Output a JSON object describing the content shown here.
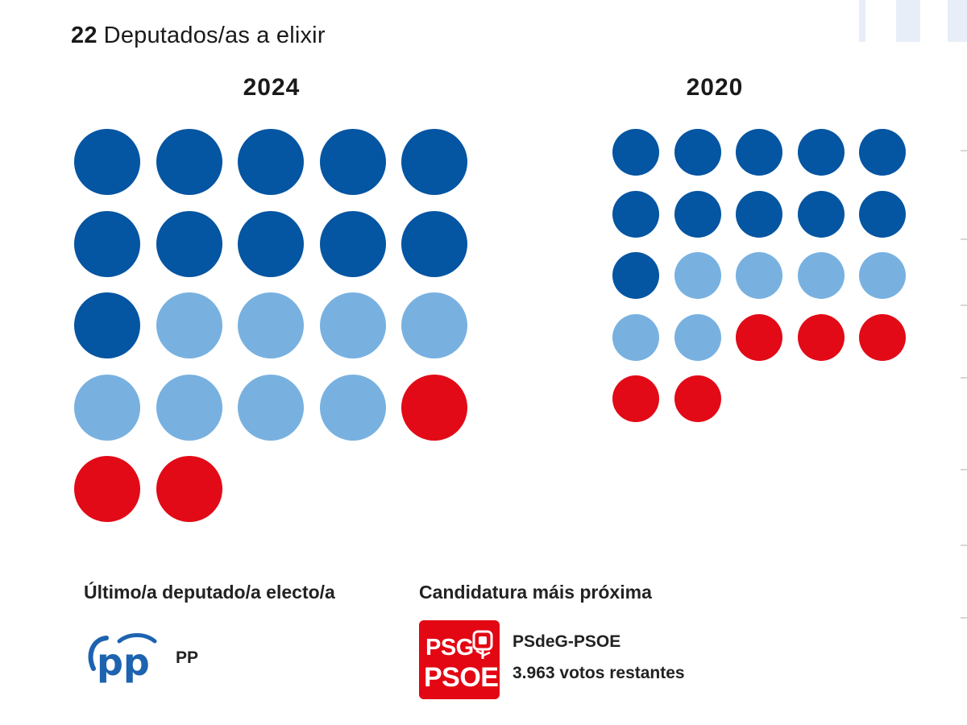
{
  "header": {
    "count": "22",
    "label": "Deputados/as a elixir"
  },
  "years": [
    {
      "year": "2024",
      "seats": [
        "pp",
        "pp",
        "pp",
        "pp",
        "pp",
        "pp",
        "pp",
        "pp",
        "pp",
        "pp",
        "pp",
        "bng",
        "bng",
        "bng",
        "bng",
        "bng",
        "bng",
        "bng",
        "bng",
        "psoe",
        "psoe",
        "psoe"
      ]
    },
    {
      "year": "2020",
      "seats": [
        "pp",
        "pp",
        "pp",
        "pp",
        "pp",
        "pp",
        "pp",
        "pp",
        "pp",
        "pp",
        "pp",
        "bng",
        "bng",
        "bng",
        "bng",
        "bng",
        "bng",
        "psoe",
        "psoe",
        "psoe",
        "psoe",
        "psoe"
      ]
    }
  ],
  "colors": {
    "pp": "#0455a2",
    "bng": "#78b1e0",
    "psoe": "#e20a17"
  },
  "last_elected": {
    "label": "Último/a deputado/a electo/a",
    "party": "PP",
    "logo_text": "pp",
    "logo_icon": "pp-logo-icon"
  },
  "nearest": {
    "label": "Candidatura máis próxima",
    "party": "PSdeG-PSOE",
    "votes": "3.963 votos restantes",
    "logo_line1": "PSG",
    "logo_line2": "PSOE",
    "logo_icon": "psoe-rose-icon"
  }
}
